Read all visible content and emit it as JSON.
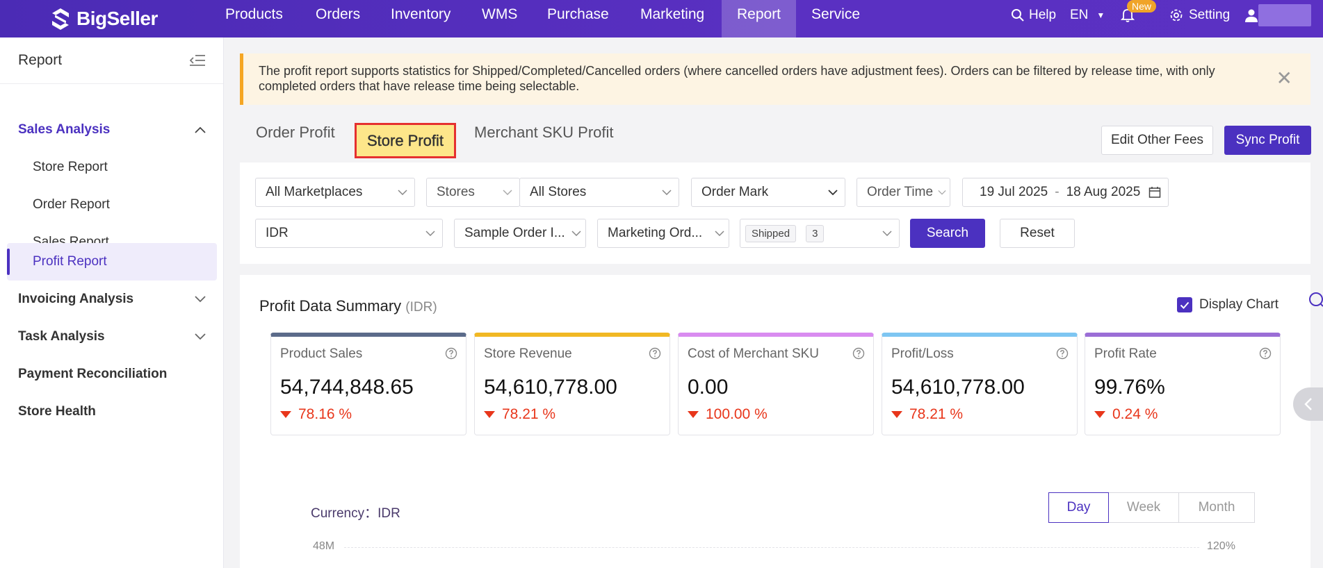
{
  "brand": {
    "name": "BigSeller"
  },
  "nav": {
    "items": [
      "Products",
      "Orders",
      "Inventory",
      "WMS",
      "Purchase",
      "Marketing",
      "Report",
      "Service"
    ],
    "active": "Report",
    "help": "Help",
    "lang": "EN",
    "notify_badge": "New",
    "setting": "Setting"
  },
  "sidebar": {
    "title": "Report",
    "groups": [
      {
        "label": "Sales Analysis",
        "expanded": true,
        "items": [
          "Store Report",
          "Order Report",
          "Sales Report",
          "Profit Report"
        ],
        "active_item": "Profit Report"
      },
      {
        "label": "Invoicing Analysis",
        "expanded": false
      },
      {
        "label": "Task Analysis",
        "expanded": false
      },
      {
        "label": "Payment Reconciliation"
      },
      {
        "label": "Store Health"
      }
    ]
  },
  "alert": {
    "text": "The profit report supports statistics for Shipped/Completed/Cancelled orders (where cancelled orders have adjustment fees). Orders can be filtered by release time, with only completed orders that have release time being selectable."
  },
  "tabs": {
    "items": [
      "Order Profit",
      "Store Profit",
      "Merchant SKU Profit"
    ],
    "active": "Store Profit"
  },
  "actions": {
    "edit_fees": "Edit Other Fees",
    "sync_profit": "Sync Profit"
  },
  "filters": {
    "marketplaces": "All Marketplaces",
    "stores_type": "Stores",
    "stores": "All Stores",
    "order_mark": "Order Mark",
    "order_time": "Order Time",
    "date_start": "19 Jul 2025",
    "date_sep": "-",
    "date_end": "18 Aug 2025",
    "currency": "IDR",
    "sample_order": "Sample Order I...",
    "marketing_order": "Marketing Ord...",
    "status_tag": "Shipped",
    "status_more": "3",
    "search": "Search",
    "reset": "Reset"
  },
  "summary": {
    "title": "Profit Data Summary",
    "currency_unit": "(IDR)",
    "display_chart_label": "Display Chart",
    "display_chart_checked": true,
    "cards": [
      {
        "label": "Product Sales",
        "value": "54,744,848.65",
        "change": "78.16 %",
        "color": "#5b6b8a"
      },
      {
        "label": "Store Revenue",
        "value": "54,610,778.00",
        "change": "78.21 %",
        "color": "#f1b824"
      },
      {
        "label": "Cost of Merchant SKU",
        "value": "0.00",
        "change": "100.00 %",
        "color": "#d98cf0"
      },
      {
        "label": "Profit/Loss",
        "value": "54,610,778.00",
        "change": "78.21 %",
        "color": "#7ec6f2"
      },
      {
        "label": "Profit Rate",
        "value": "99.76%",
        "change": "0.24 %",
        "color": "#9b6ed6"
      }
    ]
  },
  "chart": {
    "currency_label": "Currency：",
    "currency_value": "IDR",
    "periods": [
      "Day",
      "Week",
      "Month"
    ],
    "active_period": "Day",
    "y_left_top": "48M",
    "y_right_top": "120%"
  },
  "colors": {
    "brand": "#4b31c0",
    "down": "#e8361b",
    "alert_bg": "#fdf4e3",
    "alert_border": "#f5a623"
  }
}
